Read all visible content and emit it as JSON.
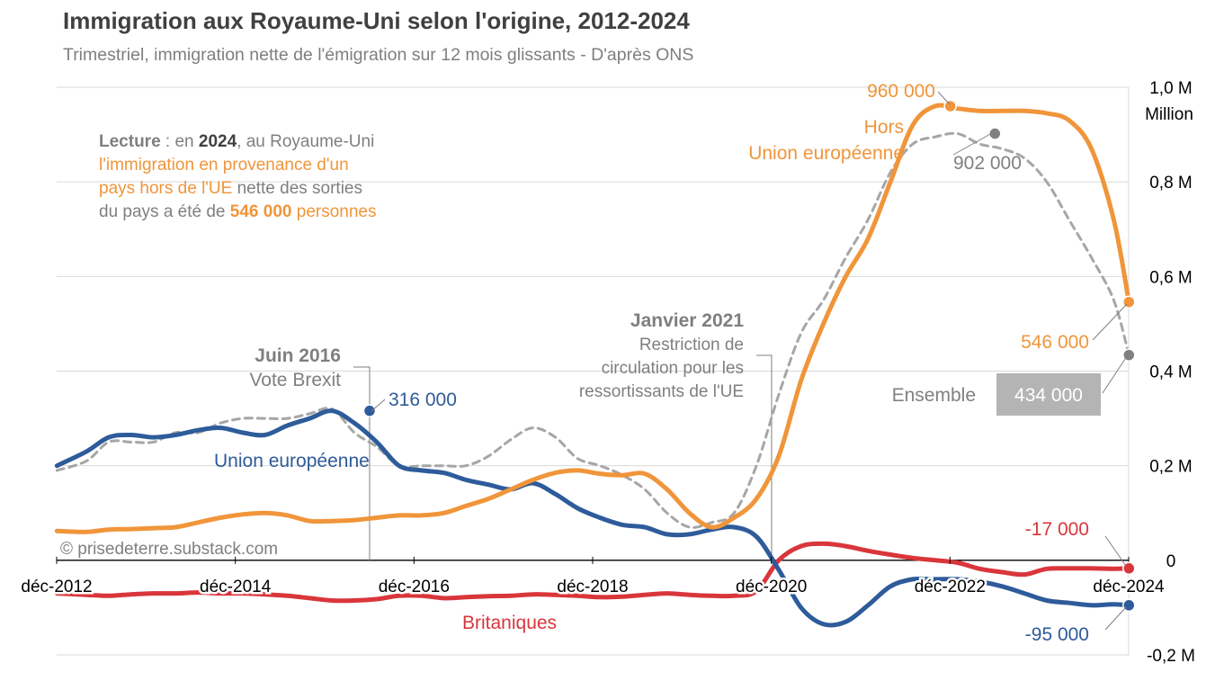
{
  "title": "Immigration aux Royaume-Uni selon l'origine, 2012-2024",
  "subtitle": "Trimestriel, immigration nette de l'émigration sur 12 mois glissants - D'après ONS",
  "credit": "© prisedeterre.substack.com",
  "reading_note": {
    "l1_bold": "Lecture",
    "l1_a": " : en ",
    "l1_year": "2024",
    "l1_b": ", au Royaume-Uni",
    "l2": "l'immigration  en provenance d'un",
    "l3_a": "pays hors de l'UE",
    "l3_b": " nette des sorties",
    "l4_a": "du pays a été de ",
    "l4_value": "546 000",
    "l4_b": " personnes"
  },
  "annotations": {
    "brexit_title": "Juin 2016",
    "brexit_text": "Vote Brexit",
    "restriction_title": "Janvier 2021",
    "restriction_l1": "Restriction de",
    "restriction_l2": "circulation pour les",
    "restriction_l3": "ressortissants de l'UE"
  },
  "point_labels": {
    "noneu_peak": "960 000",
    "total_peak": "902 000",
    "noneu_end": "546 000",
    "total_end": "434 000",
    "eu_peak": "316 000",
    "uk_end": "-17 000",
    "eu_end": "-95 000"
  },
  "colors": {
    "non_eu": "#f0953a",
    "eu": "#2e5b9a",
    "british": "#d9363b",
    "total": "#a6a6a6",
    "total_marker": "#808080"
  },
  "chart_data": {
    "type": "line",
    "title": "Immigration aux Royaume-Uni selon l'origine, 2012-2024",
    "subtitle": "Trimestriel, immigration nette de l'émigration sur 12 mois glissants - D'après ONS",
    "x_axis": {
      "ticks": [
        "déc-2012",
        "déc-2014",
        "déc-2016",
        "déc-2018",
        "déc-2020",
        "déc-2022",
        "déc-2024"
      ],
      "range": [
        2012.917,
        2024.917
      ]
    },
    "y_axis": {
      "unit": "Million",
      "ticks": [
        {
          "v": 1.0,
          "label": "1,0 M"
        },
        {
          "v": 0.8,
          "label": "0,8 M"
        },
        {
          "v": 0.6,
          "label": "0,6 M"
        },
        {
          "v": 0.4,
          "label": "0,4 M"
        },
        {
          "v": 0.2,
          "label": "0,2 M"
        },
        {
          "v": 0.0,
          "label": "0"
        },
        {
          "v": -0.2,
          "label": "-0,2 M"
        }
      ],
      "range": [
        -0.2,
        1.0
      ]
    },
    "grid": true,
    "series": [
      {
        "name": "Hors Union européenne",
        "key": "non_eu",
        "line_label_l1": "Hors",
        "line_label_l2": "Union européenne",
        "dashed": false,
        "x": [
          2012.92,
          2013.25,
          2013.5,
          2013.75,
          2014,
          2014.25,
          2014.5,
          2014.75,
          2015,
          2015.25,
          2015.5,
          2015.75,
          2016,
          2016.25,
          2016.5,
          2016.75,
          2017,
          2017.25,
          2017.5,
          2017.75,
          2018,
          2018.25,
          2018.5,
          2018.75,
          2019,
          2019.25,
          2019.5,
          2019.75,
          2020,
          2020.25,
          2020.5,
          2020.75,
          2021,
          2021.25,
          2021.5,
          2021.75,
          2022,
          2022.25,
          2022.5,
          2022.75,
          2023,
          2023.25,
          2023.5,
          2023.75,
          2024,
          2024.25,
          2024.5,
          2024.75,
          2024.92
        ],
        "y": [
          0.062,
          0.06,
          0.065,
          0.066,
          0.068,
          0.07,
          0.08,
          0.09,
          0.097,
          0.1,
          0.095,
          0.083,
          0.083,
          0.085,
          0.09,
          0.095,
          0.095,
          0.1,
          0.115,
          0.13,
          0.15,
          0.17,
          0.185,
          0.19,
          0.183,
          0.18,
          0.183,
          0.15,
          0.1,
          0.07,
          0.09,
          0.13,
          0.22,
          0.38,
          0.5,
          0.6,
          0.68,
          0.8,
          0.92,
          0.96,
          0.955,
          0.95,
          0.95,
          0.95,
          0.945,
          0.93,
          0.87,
          0.72,
          0.546
        ]
      },
      {
        "name": "Ensemble",
        "key": "total",
        "line_label_l1": "Ensemble",
        "dashed": true,
        "x": [
          2012.92,
          2013.25,
          2013.5,
          2013.75,
          2014,
          2014.25,
          2014.5,
          2014.75,
          2015,
          2015.25,
          2015.5,
          2015.75,
          2016,
          2016.25,
          2016.5,
          2016.75,
          2017,
          2017.25,
          2017.5,
          2017.75,
          2018,
          2018.25,
          2018.5,
          2018.75,
          2019,
          2019.25,
          2019.5,
          2019.75,
          2020,
          2020.25,
          2020.5,
          2020.75,
          2021,
          2021.25,
          2021.5,
          2021.75,
          2022,
          2022.25,
          2022.5,
          2022.75,
          2023,
          2023.25,
          2023.5,
          2023.75,
          2024,
          2024.25,
          2024.5,
          2024.75,
          2024.92
        ],
        "y": [
          0.19,
          0.21,
          0.25,
          0.25,
          0.25,
          0.27,
          0.27,
          0.29,
          0.3,
          0.3,
          0.3,
          0.31,
          0.32,
          0.27,
          0.24,
          0.2,
          0.2,
          0.2,
          0.2,
          0.22,
          0.255,
          0.28,
          0.26,
          0.215,
          0.2,
          0.18,
          0.15,
          0.1,
          0.07,
          0.08,
          0.1,
          0.2,
          0.35,
          0.48,
          0.55,
          0.64,
          0.72,
          0.82,
          0.88,
          0.895,
          0.902,
          0.88,
          0.87,
          0.85,
          0.8,
          0.72,
          0.64,
          0.55,
          0.434
        ]
      },
      {
        "name": "Union européenne",
        "key": "eu",
        "line_label_l1": "Union européenne",
        "dashed": false,
        "x": [
          2012.92,
          2013.25,
          2013.5,
          2013.75,
          2014,
          2014.25,
          2014.5,
          2014.75,
          2015,
          2015.25,
          2015.5,
          2015.75,
          2016,
          2016.25,
          2016.5,
          2016.75,
          2017,
          2017.25,
          2017.5,
          2017.75,
          2018,
          2018.25,
          2018.5,
          2018.75,
          2019,
          2019.25,
          2019.5,
          2019.75,
          2020,
          2020.25,
          2020.5,
          2020.75,
          2021,
          2021.25,
          2021.5,
          2021.75,
          2022,
          2022.25,
          2022.5,
          2022.75,
          2023,
          2023.25,
          2023.5,
          2023.75,
          2024,
          2024.25,
          2024.5,
          2024.75,
          2024.92
        ],
        "y": [
          0.2,
          0.23,
          0.26,
          0.265,
          0.26,
          0.265,
          0.275,
          0.28,
          0.27,
          0.265,
          0.285,
          0.3,
          0.316,
          0.29,
          0.25,
          0.2,
          0.19,
          0.185,
          0.17,
          0.16,
          0.15,
          0.163,
          0.14,
          0.11,
          0.09,
          0.075,
          0.07,
          0.055,
          0.055,
          0.065,
          0.07,
          0.05,
          -0.02,
          -0.1,
          -0.135,
          -0.13,
          -0.095,
          -0.055,
          -0.04,
          -0.04,
          -0.04,
          -0.045,
          -0.055,
          -0.07,
          -0.085,
          -0.09,
          -0.095,
          -0.093,
          -0.095
        ]
      },
      {
        "name": "Britaniques",
        "key": "british",
        "line_label_l1": "Britaniques",
        "dashed": false,
        "x": [
          2012.92,
          2013.25,
          2013.5,
          2013.75,
          2014,
          2014.25,
          2014.5,
          2014.75,
          2015,
          2015.25,
          2015.5,
          2015.75,
          2016,
          2016.25,
          2016.5,
          2016.75,
          2017,
          2017.25,
          2017.5,
          2017.75,
          2018,
          2018.25,
          2018.5,
          2018.75,
          2019,
          2019.25,
          2019.5,
          2019.75,
          2020,
          2020.25,
          2020.5,
          2020.75,
          2021,
          2021.25,
          2021.5,
          2021.75,
          2022,
          2022.25,
          2022.5,
          2022.75,
          2023,
          2023.25,
          2023.5,
          2023.75,
          2024,
          2024.25,
          2024.5,
          2024.75,
          2024.92
        ],
        "y": [
          -0.07,
          -0.073,
          -0.075,
          -0.072,
          -0.07,
          -0.07,
          -0.068,
          -0.07,
          -0.07,
          -0.072,
          -0.075,
          -0.08,
          -0.085,
          -0.085,
          -0.082,
          -0.075,
          -0.075,
          -0.08,
          -0.078,
          -0.076,
          -0.075,
          -0.072,
          -0.073,
          -0.075,
          -0.078,
          -0.077,
          -0.073,
          -0.07,
          -0.073,
          -0.075,
          -0.075,
          -0.065,
          0.0,
          0.03,
          0.035,
          0.03,
          0.02,
          0.012,
          0.005,
          0.0,
          -0.005,
          -0.018,
          -0.025,
          -0.03,
          -0.018,
          -0.017,
          -0.017,
          -0.018,
          -0.017
        ]
      }
    ],
    "highlighted_points": [
      {
        "series": "non_eu",
        "x": 2022.92,
        "y": 0.96,
        "label": "960 000"
      },
      {
        "series": "total",
        "x": 2023.42,
        "y": 0.902,
        "label": "902 000"
      },
      {
        "series": "non_eu",
        "x": 2024.92,
        "y": 0.546,
        "label": "546 000"
      },
      {
        "series": "total",
        "x": 2024.92,
        "y": 0.434,
        "label": "434 000"
      },
      {
        "series": "eu",
        "x": 2016.42,
        "y": 0.316,
        "label": "316 000"
      },
      {
        "series": "british",
        "x": 2024.92,
        "y": -0.017,
        "label": "-17 000"
      },
      {
        "series": "eu",
        "x": 2024.92,
        "y": -0.095,
        "label": "-95 000"
      }
    ],
    "events": [
      {
        "x": 2016.42,
        "title": "Juin 2016",
        "text": "Vote Brexit"
      },
      {
        "x": 2020.92,
        "title": "Janvier 2021",
        "text": "Restriction de circulation pour les ressortissants de l'UE"
      }
    ]
  }
}
